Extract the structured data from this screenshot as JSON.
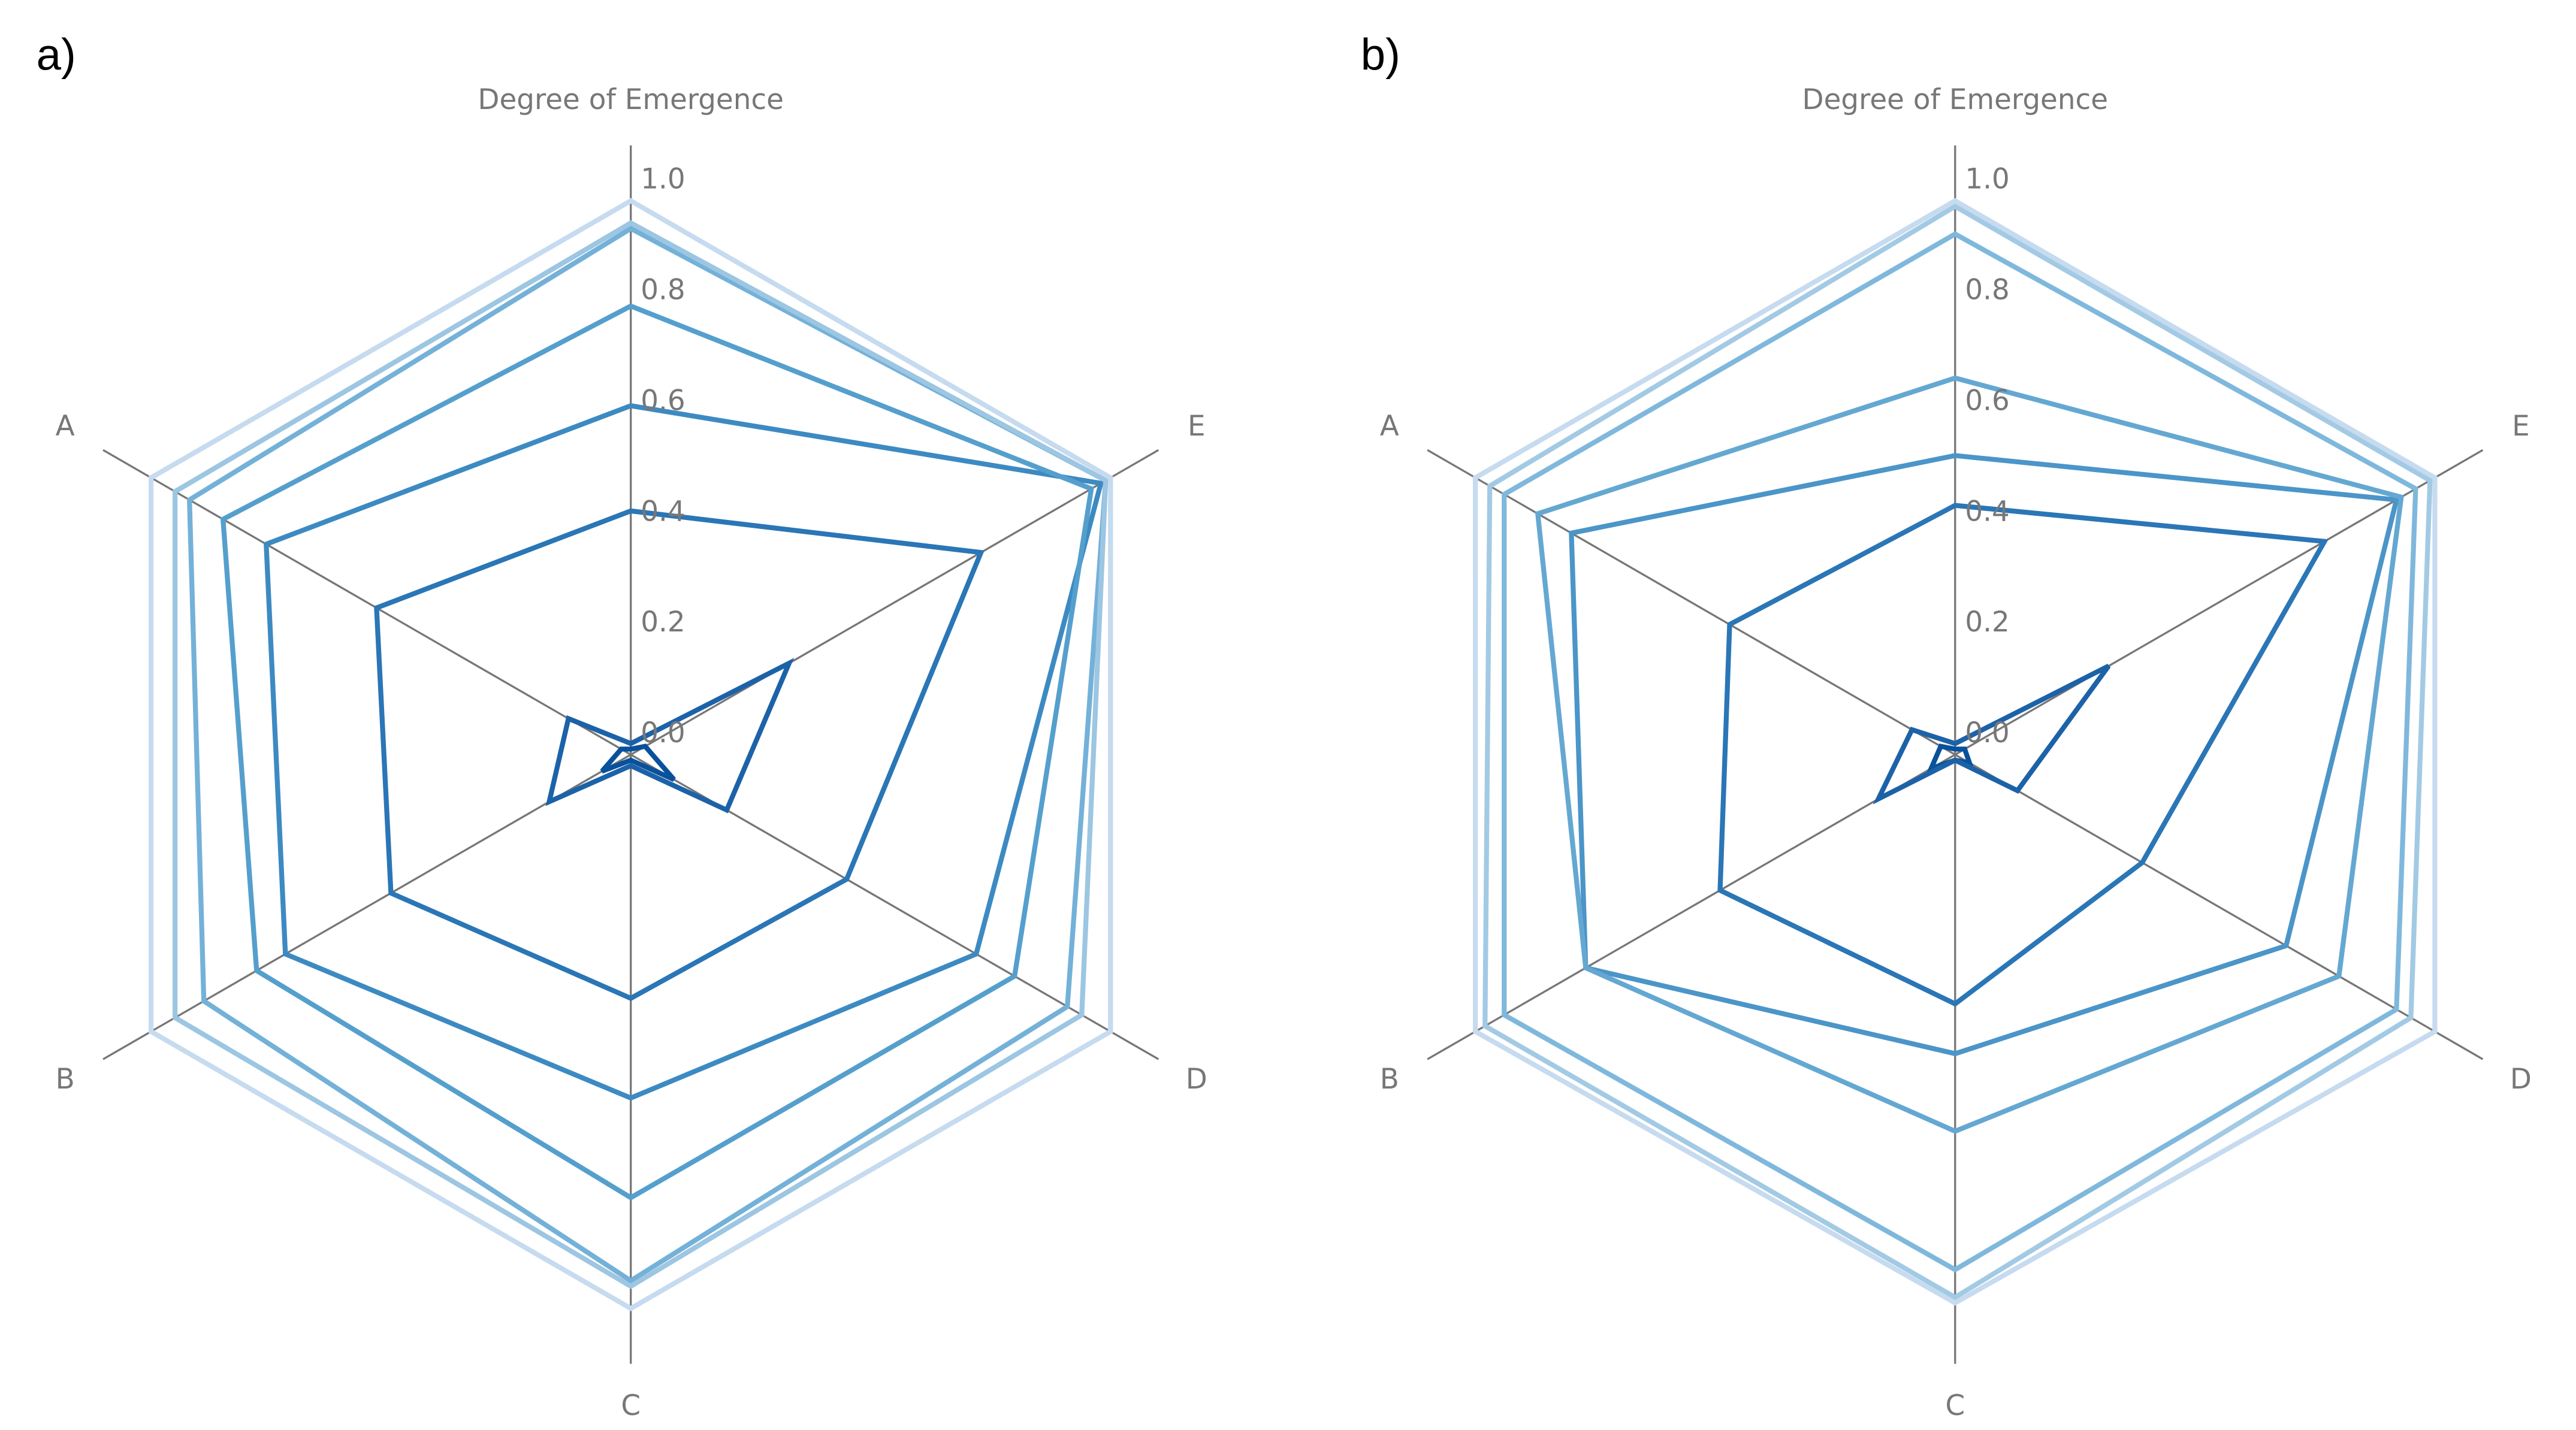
{
  "chart_data": [
    {
      "type": "radar",
      "panel_label": "a)",
      "categories": [
        "Degree of Emergence",
        "E",
        "D",
        "C",
        "B",
        "A"
      ],
      "rlim": [
        0,
        1.1
      ],
      "rticks": [
        {
          "value": 0.0,
          "label": "0.0"
        },
        0.2,
        0.4,
        0.6,
        0.8,
        {
          "value": 1.0,
          "label": "1.0"
        }
      ],
      "series": [
        {
          "color": "#08519c",
          "values": [
            0.01,
            0.03,
            0.09,
            0.01,
            0.06,
            0.02
          ]
        },
        {
          "color": "#1c62a8",
          "values": [
            0.02,
            0.33,
            0.2,
            0.02,
            0.17,
            0.13
          ]
        },
        {
          "color": "#2a76b6",
          "values": [
            0.44,
            0.73,
            0.45,
            0.44,
            0.5,
            0.53
          ]
        },
        {
          "color": "#3d8ac2",
          "values": [
            0.63,
            0.98,
            0.72,
            0.62,
            0.72,
            0.76
          ]
        },
        {
          "color": "#559fcd",
          "values": [
            0.81,
            0.96,
            0.8,
            0.8,
            0.78,
            0.85
          ]
        },
        {
          "color": "#74b1d8",
          "values": [
            0.95,
            0.99,
            0.91,
            0.95,
            0.89,
            0.92
          ]
        },
        {
          "color": "#9cc6e2",
          "values": [
            0.96,
            0.99,
            0.94,
            0.96,
            0.95,
            0.95
          ]
        },
        {
          "color": "#c6dbef",
          "values": [
            1.0,
            1.0,
            1.0,
            1.0,
            1.0,
            1.0
          ]
        }
      ]
    },
    {
      "type": "radar",
      "panel_label": "b)",
      "categories": [
        "Degree of Emergence",
        "E",
        "D",
        "C",
        "B",
        "A"
      ],
      "rlim": [
        0,
        1.1
      ],
      "rticks": [
        {
          "value": 0.0,
          "label": "0.0"
        },
        0.2,
        0.4,
        0.6,
        0.8,
        {
          "value": 1.0,
          "label": "1.0"
        }
      ],
      "series": [
        {
          "color": "#08519c",
          "values": [
            0.01,
            0.02,
            0.03,
            0.01,
            0.05,
            0.03
          ]
        },
        {
          "color": "#1c62a8",
          "values": [
            0.02,
            0.32,
            0.13,
            0.01,
            0.16,
            0.09
          ]
        },
        {
          "color": "#2a76b6",
          "values": [
            0.45,
            0.77,
            0.39,
            0.45,
            0.49,
            0.47
          ]
        },
        {
          "color": "#4b95c8",
          "values": [
            0.54,
            0.92,
            0.69,
            0.54,
            0.77,
            0.8
          ]
        },
        {
          "color": "#64a8d2",
          "values": [
            0.68,
            0.93,
            0.8,
            0.68,
            0.77,
            0.87
          ]
        },
        {
          "color": "#7fb8dc",
          "values": [
            0.94,
            0.96,
            0.92,
            0.93,
            0.94,
            0.94
          ]
        },
        {
          "color": "#a3cae4",
          "values": [
            0.99,
            0.99,
            0.95,
            0.98,
            0.98,
            0.97
          ]
        },
        {
          "color": "#c6dbef",
          "values": [
            1.0,
            1.0,
            1.0,
            0.99,
            1.0,
            1.0
          ]
        }
      ]
    }
  ]
}
